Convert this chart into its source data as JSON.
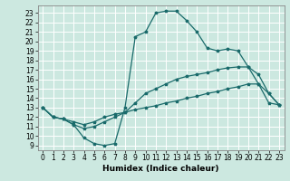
{
  "title": "",
  "xlabel": "Humidex (Indice chaleur)",
  "bg_color": "#cce8e0",
  "grid_color": "#ffffff",
  "line_color": "#1a6b6b",
  "x_ticks": [
    0,
    1,
    2,
    3,
    4,
    5,
    6,
    7,
    8,
    9,
    10,
    11,
    12,
    13,
    14,
    15,
    16,
    17,
    18,
    19,
    20,
    21,
    22,
    23
  ],
  "y_ticks": [
    9,
    10,
    11,
    12,
    13,
    14,
    15,
    16,
    17,
    18,
    19,
    20,
    21,
    22,
    23
  ],
  "xlim": [
    -0.5,
    23.5
  ],
  "ylim": [
    8.5,
    23.8
  ],
  "curve1_x": [
    0,
    1,
    2,
    3,
    4,
    5,
    6,
    7,
    8,
    9,
    10,
    11,
    12,
    13,
    14,
    15,
    16,
    17,
    18,
    19,
    20,
    21,
    22,
    23
  ],
  "curve1_y": [
    13.0,
    12.0,
    11.8,
    11.2,
    9.8,
    9.2,
    9.0,
    9.2,
    13.0,
    20.5,
    21.0,
    23.0,
    23.2,
    23.2,
    22.2,
    21.0,
    19.3,
    19.0,
    19.2,
    19.0,
    17.3,
    15.5,
    13.5,
    13.3
  ],
  "curve2_x": [
    0,
    1,
    2,
    3,
    4,
    5,
    6,
    7,
    8,
    9,
    10,
    11,
    12,
    13,
    14,
    15,
    16,
    17,
    18,
    19,
    20,
    21,
    22,
    23
  ],
  "curve2_y": [
    13.0,
    12.0,
    11.8,
    11.2,
    10.8,
    11.0,
    11.5,
    12.0,
    12.5,
    13.5,
    14.5,
    15.0,
    15.5,
    16.0,
    16.3,
    16.5,
    16.7,
    17.0,
    17.2,
    17.3,
    17.3,
    16.5,
    14.5,
    13.3
  ],
  "curve3_x": [
    0,
    1,
    2,
    3,
    4,
    5,
    6,
    7,
    8,
    9,
    10,
    11,
    12,
    13,
    14,
    15,
    16,
    17,
    18,
    19,
    20,
    21,
    22,
    23
  ],
  "curve3_y": [
    13.0,
    12.0,
    11.8,
    11.5,
    11.2,
    11.5,
    12.0,
    12.3,
    12.5,
    12.8,
    13.0,
    13.2,
    13.5,
    13.7,
    14.0,
    14.2,
    14.5,
    14.7,
    15.0,
    15.2,
    15.5,
    15.5,
    14.5,
    13.3
  ],
  "tick_fontsize": 5.5,
  "xlabel_fontsize": 6.5,
  "marker_size": 2.5,
  "line_width": 0.9
}
